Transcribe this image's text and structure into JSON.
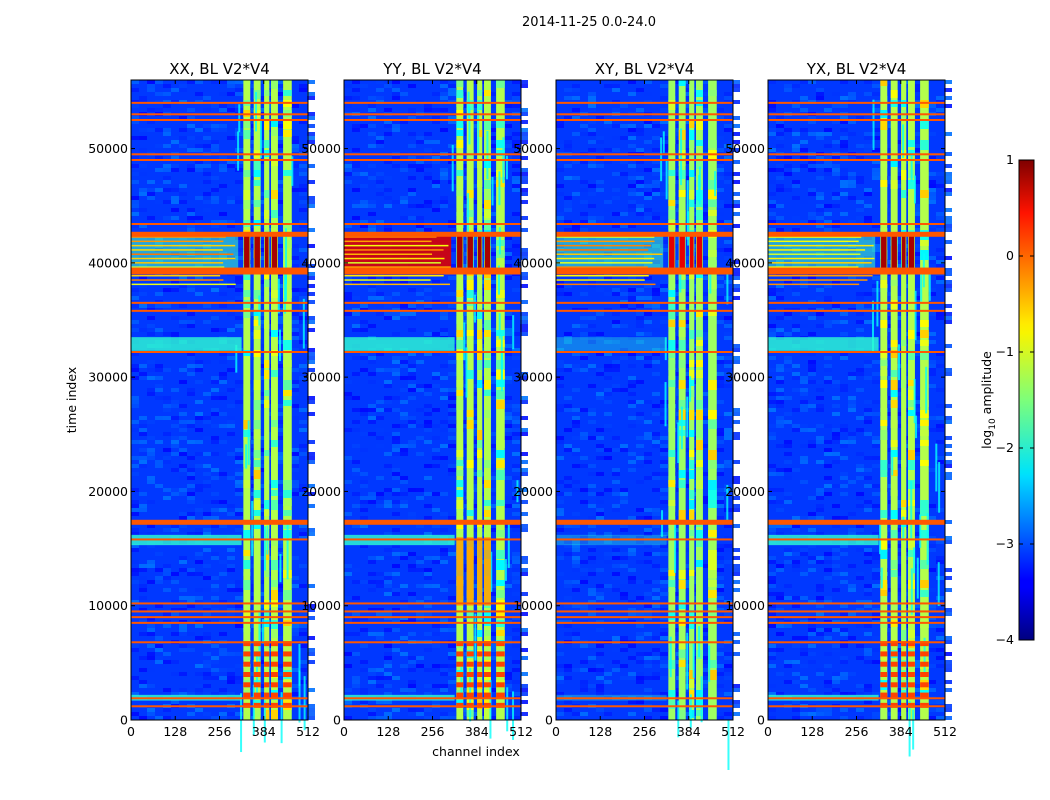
{
  "figure": {
    "suptitle": "2014-11-25 0.0-24.0"
  },
  "chart_data": {
    "type": "heatmap",
    "colormap": "jet",
    "xlabel": "channel index",
    "ylabel": "time index",
    "xlim": [
      0,
      512
    ],
    "ylim": [
      0,
      56000
    ],
    "xticks": [
      0,
      128,
      256,
      384,
      512
    ],
    "yticks": [
      0,
      10000,
      20000,
      30000,
      40000,
      50000
    ],
    "panels": [
      {
        "title": "XX, BL V2*V4",
        "pol": "XX",
        "left_flare": false,
        "bottom_hot": true
      },
      {
        "title": "YY, BL V2*V4",
        "pol": "YY",
        "left_flare": true,
        "bottom_hot": true
      },
      {
        "title": "XY, BL V2*V4",
        "pol": "XY",
        "left_flare": false,
        "bottom_hot": false
      },
      {
        "title": "YX, BL V2*V4",
        "pol": "YX",
        "left_flare": false,
        "bottom_hot": true
      }
    ],
    "hot_channel_bands": [
      [
        325,
        345
      ],
      [
        355,
        375
      ],
      [
        385,
        400
      ],
      [
        405,
        425
      ],
      [
        440,
        465
      ]
    ],
    "flagged_time_rows": [
      1200,
      1900,
      6800,
      8500,
      9000,
      9500,
      10200,
      15800,
      17300,
      32200,
      35800,
      36500,
      39200,
      39500,
      42500,
      43400,
      49000,
      49500,
      52500,
      53000,
      54000
    ],
    "bright_time_span": [
      39000,
      42500
    ],
    "colorbar": {
      "label": "log10 amplitude",
      "vmin": -4,
      "vmax": 1,
      "ticks": [
        1,
        0,
        -1,
        -2,
        -3,
        -4
      ],
      "tick_labels": [
        "1",
        "0",
        "−1",
        "−2",
        "−3",
        "−4"
      ]
    }
  }
}
